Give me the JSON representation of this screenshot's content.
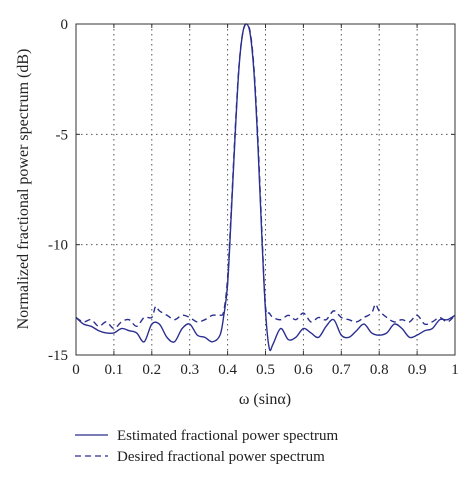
{
  "chart_data": {
    "type": "line",
    "title": "",
    "xlabel": "ω (sinα)",
    "ylabel": "Normalized fractional power spectrum (dB)",
    "xlim": [
      0,
      1
    ],
    "ylim": [
      -15,
      0
    ],
    "x_ticks": [
      "0",
      "0.1",
      "0.2",
      "0.3",
      "0.4",
      "0.5",
      "0.6",
      "0.7",
      "0.8",
      "0.9",
      "1"
    ],
    "y_ticks": [
      "0",
      "-5",
      "-10",
      "-15"
    ],
    "grid": true,
    "legend_position": "below-plot",
    "series": [
      {
        "name": "Estimated fractional power spectrum",
        "style": "solid",
        "color": "#2b2f8f",
        "x": [
          0.0,
          0.02,
          0.04,
          0.06,
          0.08,
          0.1,
          0.12,
          0.14,
          0.16,
          0.18,
          0.2,
          0.22,
          0.24,
          0.26,
          0.28,
          0.3,
          0.32,
          0.34,
          0.36,
          0.38,
          0.39,
          0.4,
          0.41,
          0.42,
          0.43,
          0.44,
          0.45,
          0.46,
          0.47,
          0.48,
          0.49,
          0.5,
          0.51,
          0.52,
          0.54,
          0.56,
          0.58,
          0.6,
          0.62,
          0.64,
          0.66,
          0.68,
          0.7,
          0.72,
          0.74,
          0.76,
          0.78,
          0.8,
          0.82,
          0.84,
          0.86,
          0.88,
          0.9,
          0.92,
          0.94,
          0.96,
          0.98,
          1.0
        ],
        "y": [
          -13.3,
          -13.6,
          -13.7,
          -13.9,
          -14.0,
          -14.0,
          -13.8,
          -13.9,
          -14.0,
          -14.4,
          -13.6,
          -13.6,
          -14.2,
          -14.4,
          -13.8,
          -13.6,
          -14.1,
          -14.2,
          -14.4,
          -14.1,
          -13.2,
          -11.8,
          -8.5,
          -5.0,
          -2.0,
          -0.4,
          0.0,
          -0.5,
          -2.3,
          -5.5,
          -9.5,
          -13.0,
          -14.7,
          -14.5,
          -13.8,
          -14.3,
          -14.2,
          -13.8,
          -14.0,
          -14.2,
          -13.7,
          -13.4,
          -14.1,
          -14.2,
          -13.9,
          -13.6,
          -14.0,
          -14.1,
          -14.0,
          -13.6,
          -13.8,
          -14.2,
          -14.1,
          -13.9,
          -13.8,
          -13.4,
          -13.4,
          -13.2
        ]
      },
      {
        "name": "Desired fractional power spectrum",
        "style": "dashed",
        "color": "#2b2f8f",
        "x": [
          0.0,
          0.02,
          0.04,
          0.06,
          0.08,
          0.1,
          0.12,
          0.14,
          0.16,
          0.18,
          0.2,
          0.21,
          0.22,
          0.24,
          0.26,
          0.28,
          0.3,
          0.32,
          0.34,
          0.36,
          0.38,
          0.39,
          0.4,
          0.41,
          0.42,
          0.43,
          0.44,
          0.45,
          0.46,
          0.47,
          0.48,
          0.49,
          0.5,
          0.51,
          0.52,
          0.54,
          0.56,
          0.58,
          0.6,
          0.62,
          0.64,
          0.66,
          0.68,
          0.7,
          0.72,
          0.74,
          0.76,
          0.78,
          0.79,
          0.8,
          0.82,
          0.84,
          0.86,
          0.88,
          0.9,
          0.92,
          0.94,
          0.96,
          0.98,
          1.0
        ],
        "y": [
          -13.3,
          -13.5,
          -13.4,
          -13.7,
          -13.5,
          -13.8,
          -13.5,
          -13.4,
          -13.7,
          -13.3,
          -13.3,
          -12.8,
          -13.0,
          -13.2,
          -13.4,
          -13.2,
          -13.3,
          -13.5,
          -13.4,
          -13.2,
          -13.2,
          -13.0,
          -11.5,
          -8.3,
          -4.8,
          -1.9,
          -0.4,
          0.0,
          -0.4,
          -2.1,
          -5.2,
          -9.2,
          -12.8,
          -13.1,
          -13.3,
          -13.4,
          -13.2,
          -13.4,
          -13.1,
          -13.5,
          -13.3,
          -13.4,
          -13.0,
          -13.3,
          -13.4,
          -13.5,
          -13.3,
          -13.1,
          -12.7,
          -13.0,
          -13.3,
          -13.5,
          -13.4,
          -13.5,
          -13.2,
          -13.6,
          -13.5,
          -13.3,
          -13.5,
          -13.2
        ]
      }
    ]
  }
}
